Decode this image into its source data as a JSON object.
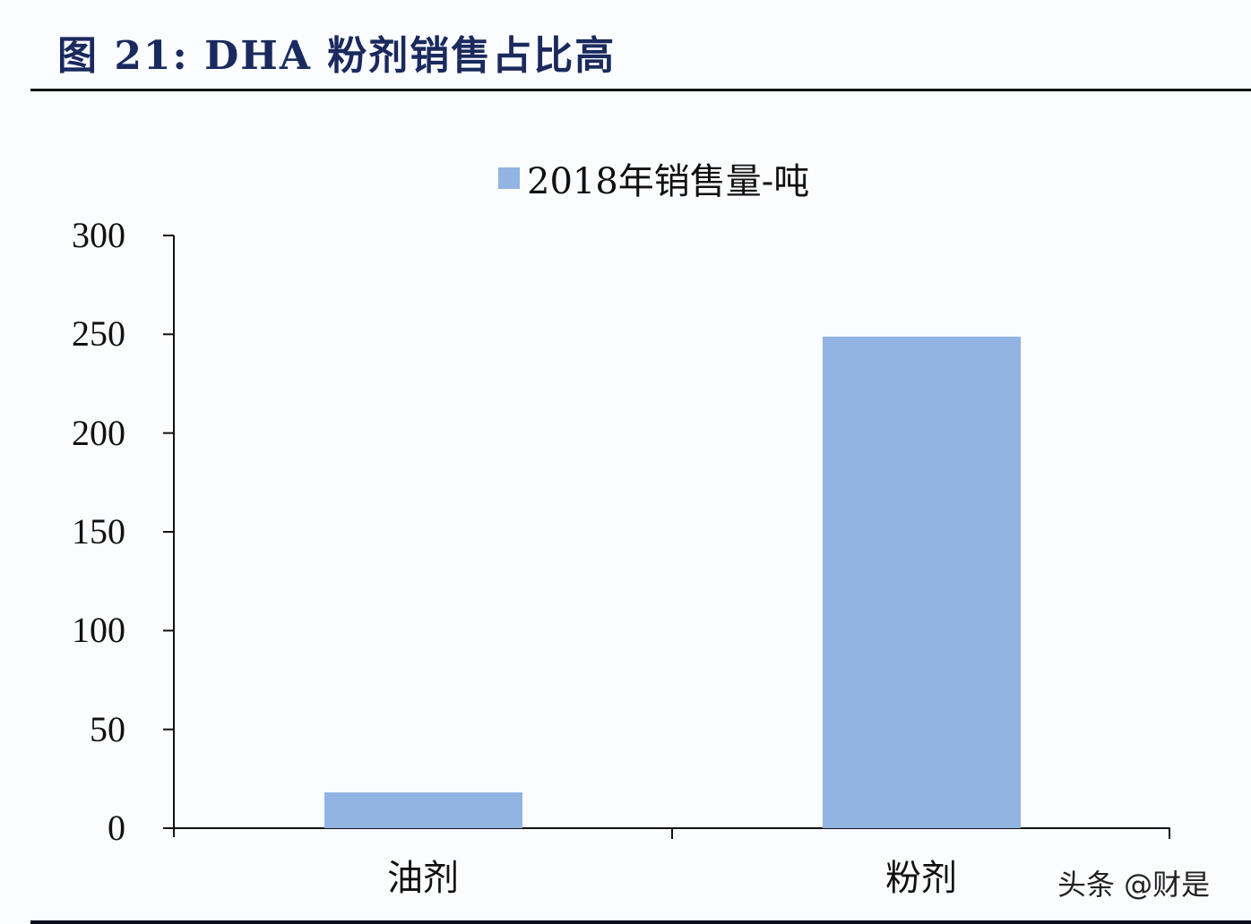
{
  "title": "图 21: DHA 粉剂销售占比高",
  "watermark": "头条 @财是",
  "colors": {
    "bar": "#92b4e2",
    "title": "#1a2a5e",
    "axis": "#111111"
  },
  "legend": {
    "label": "2018年销售量-吨"
  },
  "chart_data": {
    "type": "bar",
    "title": "图 21: DHA 粉剂销售占比高",
    "categories": [
      "油剂",
      "粉剂"
    ],
    "series": [
      {
        "name": "2018年销售量-吨",
        "values": [
          18,
          249
        ]
      }
    ],
    "values": [
      18,
      249
    ],
    "xlabel": "",
    "ylabel": "",
    "ylim": [
      0,
      300
    ],
    "yticks": [
      "300",
      "250",
      "200",
      "150",
      "100",
      "50",
      "0"
    ],
    "grid": false,
    "legend_position": "top"
  }
}
